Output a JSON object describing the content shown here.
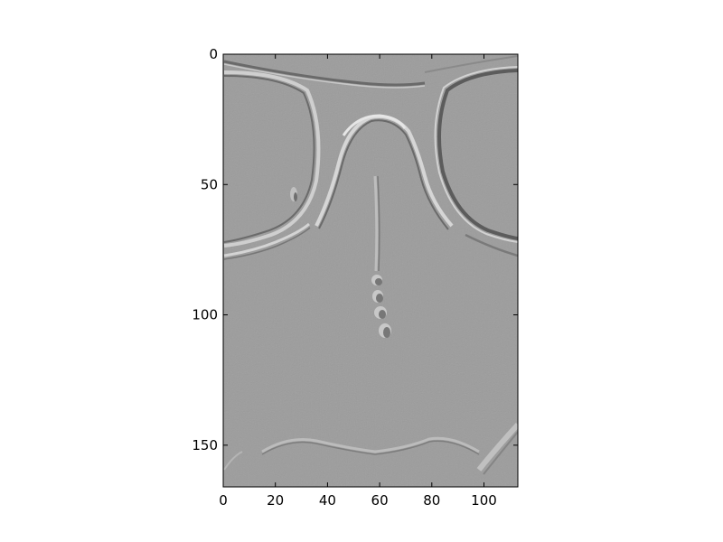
{
  "image": {
    "description_kind": "embossed-grayscale",
    "colors": {
      "base": "#9c9c9c",
      "highlight": "#d0d0d0",
      "shadow": "#5a5a5a"
    }
  },
  "axes": {
    "x": {
      "range": [
        0,
        113
      ],
      "ticks": [
        0,
        20,
        40,
        60,
        80,
        100
      ],
      "labels": [
        "0",
        "20",
        "40",
        "60",
        "80",
        "100"
      ]
    },
    "y": {
      "range": [
        0,
        166
      ],
      "inverted": true,
      "ticks": [
        0,
        50,
        100,
        150
      ],
      "labels": [
        "0",
        "50",
        "100",
        "150"
      ]
    }
  }
}
